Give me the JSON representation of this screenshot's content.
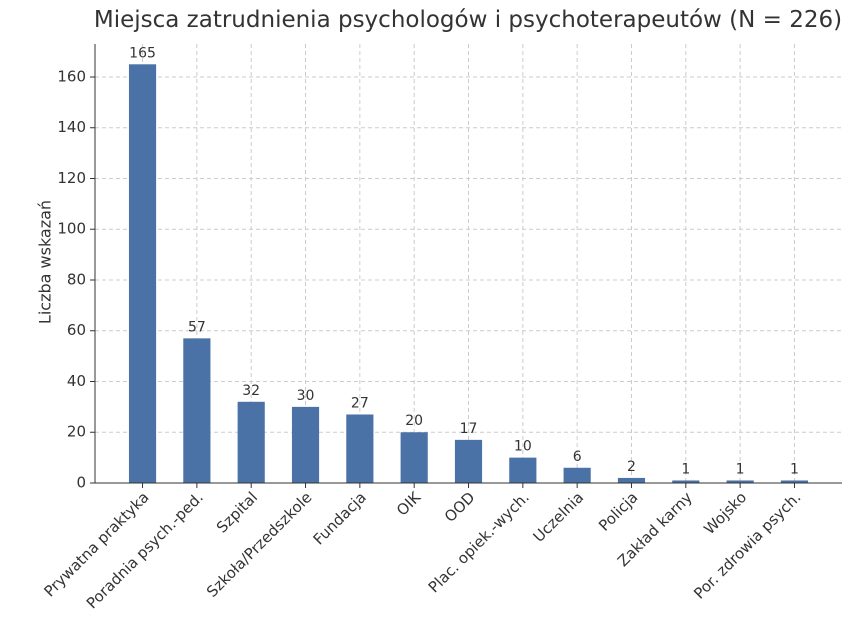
{
  "chart_data": {
    "type": "bar",
    "title": "Miejsca zatrudnienia psychologów i psychoterapeutów (N = 226)",
    "y_label": "Liczba wskazań",
    "categories": [
      "Prywatna praktyka",
      "Poradnia psych.-ped.",
      "Szpital",
      "Szkoła/Przedszkole",
      "Fundacja",
      "OIK",
      "OOD",
      "Plac. opiek.-wych.",
      "Uczelnia",
      "Policja",
      "Zakład karny",
      "Wojsko",
      "Por. zdrowia psych."
    ],
    "values": [
      165,
      57,
      32,
      30,
      27,
      20,
      17,
      10,
      6,
      2,
      1,
      1,
      1
    ],
    "color": "#4a72a6",
    "ylim": [
      0,
      173
    ],
    "yticks": [
      0,
      20,
      40,
      60,
      80,
      100,
      120,
      140,
      160
    ],
    "grid": true
  }
}
